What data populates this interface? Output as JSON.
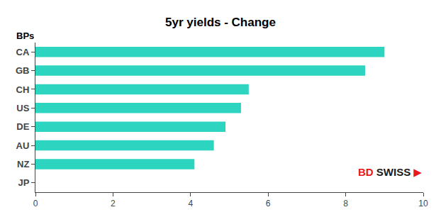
{
  "chart_data": {
    "type": "bar",
    "orientation": "horizontal",
    "title": "5yr yields - Change",
    "ylabel": "BPs",
    "categories": [
      "JP",
      "NZ",
      "AU",
      "DE",
      "US",
      "CH",
      "GB",
      "CA"
    ],
    "values": [
      0.0,
      4.1,
      4.6,
      4.9,
      5.3,
      5.5,
      8.5,
      9.0
    ],
    "color": "#2dd4bf",
    "xlim": [
      0,
      10
    ],
    "xticks": [
      0,
      2,
      4,
      6,
      8,
      10
    ],
    "grid": false,
    "annotations": [
      {
        "text": "BD",
        "color": "#e8191a"
      },
      {
        "text": "SWISS",
        "color": "#1a1a1a"
      },
      {
        "text": "▶",
        "color": "#e8191a"
      }
    ]
  }
}
